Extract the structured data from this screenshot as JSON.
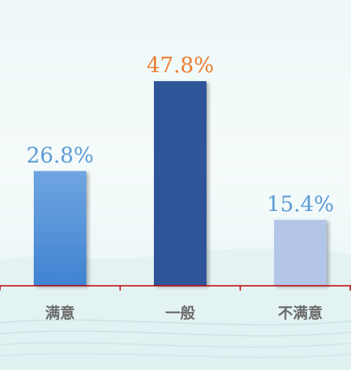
{
  "chart_data": {
    "type": "bar",
    "categories": [
      "满意",
      "一般",
      "不满意"
    ],
    "values": [
      26.8,
      47.8,
      15.4
    ],
    "value_labels": [
      "26.8%",
      "47.8%",
      "15.4%"
    ],
    "unit": "%",
    "ylim": [
      0,
      55
    ],
    "grid": false,
    "legend": "none",
    "colors": {
      "bars": [
        "#4e8fd6",
        "#2f5597",
        "#b4c6e7"
      ],
      "labels": [
        "#5b9bd5",
        "#ed7d31",
        "#5b9bd5"
      ],
      "axis": "#c00000"
    }
  }
}
